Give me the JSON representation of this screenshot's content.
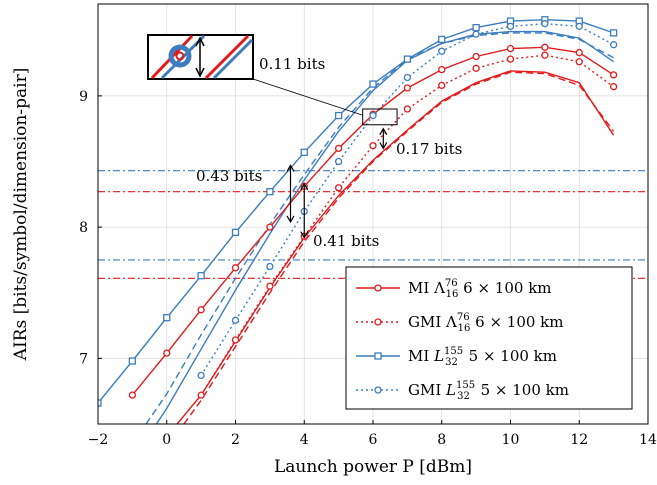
{
  "chart_data": {
    "type": "line",
    "xlabel": "Launch power P [dBm]",
    "ylabel": "AIRs [bits/symbol/dimension-pair]",
    "xlim": [
      -2,
      14
    ],
    "ylim": [
      6.5,
      9.7
    ],
    "xticks": [
      -2,
      0,
      2,
      4,
      6,
      8,
      10,
      12,
      14
    ],
    "yticks": [
      7,
      8,
      9
    ],
    "grid": true,
    "legend_position": "bottom-right",
    "series": [
      {
        "name": "MI Λ_16^76 6 × 100 km",
        "color": "#e31a1c",
        "style": "solid",
        "marker": "o",
        "x": [
          -1,
          0,
          1,
          2,
          3,
          4,
          5,
          6,
          7,
          8,
          9,
          10,
          11,
          12,
          13
        ],
        "y": [
          6.72,
          7.04,
          7.37,
          7.69,
          8.0,
          8.31,
          8.6,
          8.86,
          9.06,
          9.2,
          9.3,
          9.36,
          9.37,
          9.33,
          9.16
        ]
      },
      {
        "name": "GMI Λ_16^76 6 × 100 km",
        "color": "#e31a1c",
        "style": "dotted",
        "marker": "o",
        "x": [
          1,
          2,
          3,
          4,
          5,
          6,
          7,
          8,
          9,
          10,
          11,
          12,
          13
        ],
        "y": [
          6.72,
          7.14,
          7.55,
          7.93,
          8.3,
          8.62,
          8.9,
          9.08,
          9.21,
          9.28,
          9.31,
          9.26,
          9.07
        ]
      },
      {
        "name": "MI L_32^155 5 × 100 km",
        "color": "#3b7dbf",
        "style": "solid",
        "marker": "s",
        "x": [
          -2,
          -1,
          0,
          1,
          2,
          3,
          4,
          5,
          6,
          7,
          8,
          9,
          10,
          11,
          12,
          13
        ],
        "y": [
          6.66,
          6.98,
          7.31,
          7.63,
          7.96,
          8.27,
          8.57,
          8.85,
          9.09,
          9.28,
          9.43,
          9.52,
          9.57,
          9.58,
          9.57,
          9.48
        ]
      },
      {
        "name": "GMI L_32^155 5 × 100 km",
        "color": "#3b7dbf",
        "style": "dotted",
        "marker": "o",
        "x": [
          1,
          2,
          3,
          4,
          5,
          6,
          7,
          8,
          9,
          10,
          11,
          12,
          13
        ],
        "y": [
          6.87,
          7.29,
          7.7,
          8.12,
          8.5,
          8.85,
          9.14,
          9.34,
          9.47,
          9.53,
          9.55,
          9.53,
          9.39
        ]
      },
      {
        "name": "",
        "color": "#e31a1c",
        "style": "solid",
        "marker": "none",
        "x": [
          0.3,
          1,
          2,
          3,
          4,
          5,
          6,
          7,
          8,
          9,
          10,
          11,
          12,
          13
        ],
        "y": [
          6.5,
          6.72,
          7.13,
          7.54,
          7.92,
          8.24,
          8.51,
          8.74,
          8.96,
          9.1,
          9.19,
          9.18,
          9.1,
          8.7
        ]
      },
      {
        "name": "",
        "color": "#3b7dbf",
        "style": "dashed",
        "marker": "none",
        "x": [
          -0.6,
          0,
          1,
          2,
          3,
          4,
          5,
          6,
          7,
          8,
          9,
          10,
          11,
          12,
          13
        ],
        "y": [
          6.5,
          6.73,
          7.18,
          7.61,
          8.02,
          8.4,
          8.76,
          9.06,
          9.28,
          9.4,
          9.46,
          9.48,
          9.48,
          9.43,
          9.29
        ]
      },
      {
        "name": "",
        "color": "#3b7dbf",
        "style": "solid",
        "marker": "none",
        "x": [
          -0.3,
          0,
          1,
          2,
          3,
          4,
          5,
          6,
          7,
          8,
          9,
          10,
          11,
          12,
          13
        ],
        "y": [
          6.5,
          6.62,
          7.07,
          7.52,
          7.95,
          8.36,
          8.73,
          9.04,
          9.27,
          9.4,
          9.47,
          9.49,
          9.49,
          9.44,
          9.26
        ]
      },
      {
        "name": "",
        "color": "#e31a1c",
        "style": "dashed",
        "marker": "none",
        "x": [
          0.5,
          1,
          2,
          3,
          4,
          5,
          6,
          7,
          8,
          9,
          10,
          11,
          12,
          13
        ],
        "y": [
          6.5,
          6.68,
          7.09,
          7.5,
          7.89,
          8.22,
          8.5,
          8.73,
          8.95,
          9.09,
          9.18,
          9.17,
          9.08,
          8.73
        ]
      }
    ],
    "hlines": [
      {
        "y": 8.43,
        "color": "#3b7dbf",
        "style": "dashdot"
      },
      {
        "y": 8.27,
        "color": "#e31a1c",
        "style": "dashdot"
      },
      {
        "y": 7.75,
        "color": "#3b7dbf",
        "style": "dashdot"
      },
      {
        "y": 7.61,
        "color": "#e31a1c",
        "style": "dashdot"
      }
    ],
    "annotations": [
      {
        "text": "0.11 bits"
      },
      {
        "text": "0.17 bits"
      },
      {
        "text": "0.43 bits"
      },
      {
        "text": "0.41 bits"
      }
    ],
    "arrows": [
      {
        "x": 3.6,
        "y1": 8.47,
        "y2": 8.04
      },
      {
        "x": 4.0,
        "y1": 8.33,
        "y2": 7.92
      },
      {
        "x": 6.3,
        "y1": 8.75,
        "y2": 8.6
      }
    ],
    "zoom_box": {
      "x": [
        5.7,
        6.7
      ],
      "y": [
        8.78,
        8.9
      ]
    },
    "legend": [
      {
        "label": "MI Λ_16^76 6 × 100 km"
      },
      {
        "label": "GMI Λ_16^76 6 × 100 km"
      },
      {
        "label": "MI L_32^155 5 × 100 km"
      },
      {
        "label": "GMI L_32^155 5 × 100 km"
      }
    ]
  }
}
